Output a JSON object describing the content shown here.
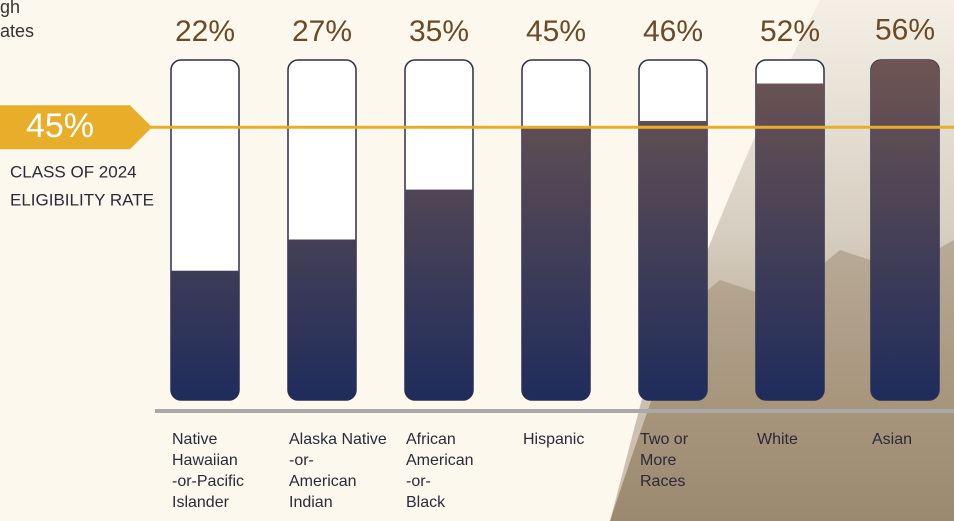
{
  "chart_data": {
    "type": "bar",
    "title_fragments": [
      "gh",
      "ates"
    ],
    "categories": [
      [
        "Native",
        "Hawaiian",
        "-or-Pacific",
        "Islander"
      ],
      [
        "Alaska Native",
        "-or-",
        "American",
        "Indian"
      ],
      [
        "African",
        "American",
        "-or-",
        "Black"
      ],
      [
        "Hispanic"
      ],
      [
        "Two or",
        "More",
        "Races"
      ],
      [
        "White"
      ],
      [
        "Asian"
      ]
    ],
    "values": [
      22,
      27,
      35,
      45,
      46,
      52,
      56
    ],
    "value_labels": [
      "22%",
      "27%",
      "35%",
      "45%",
      "46%",
      "52%",
      "56%"
    ],
    "ylim": [
      0,
      60
    ],
    "colors": {
      "bar_top": "#6e5552",
      "bar_bottom": "#1f2c5c",
      "label": "#6b4a26",
      "reference": "#e8ae2a"
    },
    "reference": {
      "value": 45,
      "label": "45%",
      "text": [
        "CLASS OF 2024",
        "ELIGIBILITY RATE"
      ]
    }
  }
}
